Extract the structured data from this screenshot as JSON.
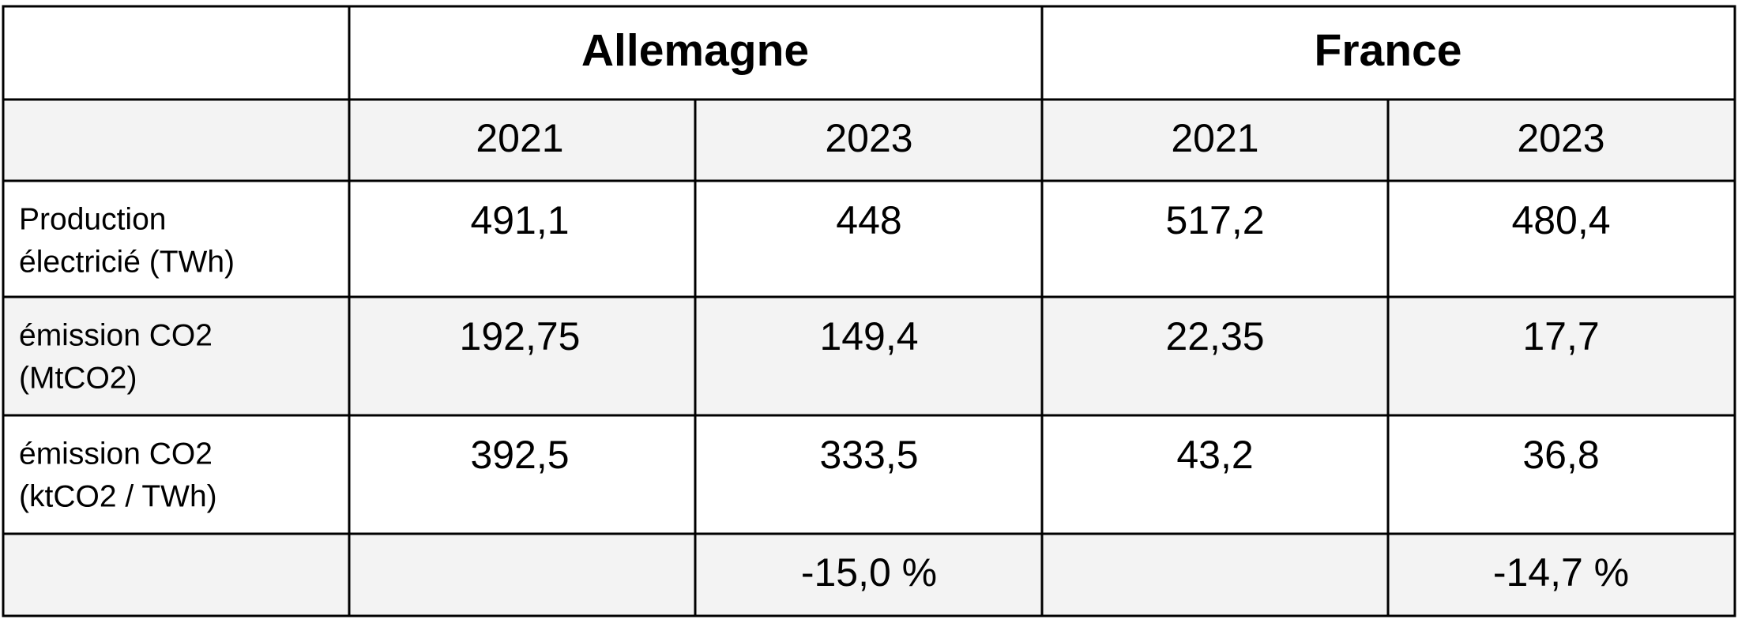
{
  "table": {
    "countries": [
      "Allemagne",
      "France"
    ],
    "years": [
      "2021",
      "2023",
      "2021",
      "2023"
    ],
    "rows": [
      {
        "label": [
          "Production",
          "électricié (TWh)"
        ],
        "values": [
          "491,1",
          "448",
          "517,2",
          "480,4"
        ]
      },
      {
        "label": [
          "émission CO2",
          "(MtCO2)"
        ],
        "values": [
          "192,75",
          "149,4",
          "22,35",
          "17,7"
        ]
      },
      {
        "label": [
          "émission CO2",
          "(ktCO2 / TWh)"
        ],
        "values": [
          "392,5",
          "333,5",
          "43,2",
          "36,8"
        ]
      }
    ],
    "variation": [
      "-15,0 %",
      "-14,7 %"
    ]
  }
}
